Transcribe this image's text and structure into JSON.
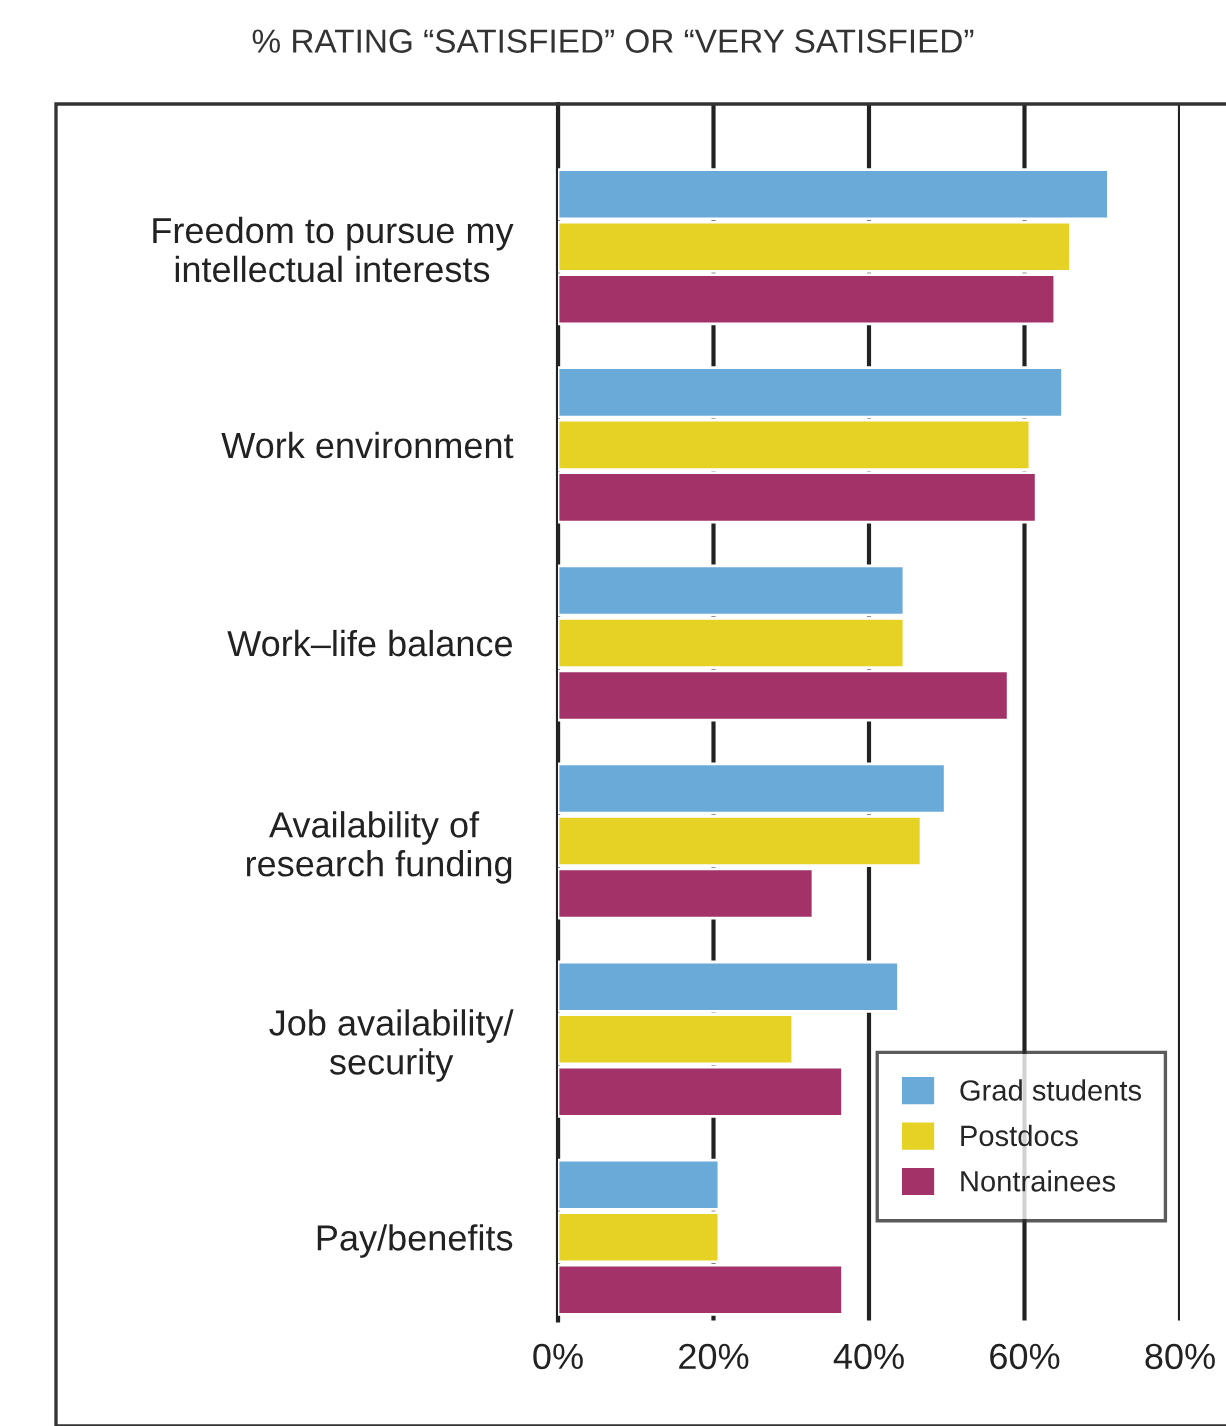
{
  "chart_data": {
    "type": "bar",
    "orientation": "horizontal",
    "title": "% RATING “SATISFIED” OR “VERY SATISFIED”",
    "categories": [
      "Freedom to pursue my\nintellectual interests",
      "Work environment",
      "Work–life balance",
      "Availability of \nresearch funding",
      "Job availability/\nsecurity",
      "Pay/benefits"
    ],
    "series": [
      {
        "name": "Grad students",
        "color": "#6aaad9",
        "values": [
          70.8,
          64.9,
          44.5,
          49.8,
          43.8,
          20.7
        ]
      },
      {
        "name": "Postdocs",
        "color": "#e6d224",
        "values": [
          65.9,
          60.7,
          44.5,
          46.7,
          30.2,
          20.7
        ]
      },
      {
        "name": "Nontrainees",
        "color": "#a33268",
        "values": [
          63.9,
          61.5,
          57.9,
          32.8,
          36.6,
          36.6
        ]
      }
    ],
    "xlim": [
      0,
      80
    ],
    "xticks": [
      {
        "value": 0,
        "label": "0%"
      },
      {
        "value": 20,
        "label": "20%"
      },
      {
        "value": 40,
        "label": "40%"
      },
      {
        "value": 60,
        "label": "60%"
      },
      {
        "value": 80,
        "label": "80%"
      }
    ],
    "grid": "x",
    "legend": "bottom right"
  }
}
